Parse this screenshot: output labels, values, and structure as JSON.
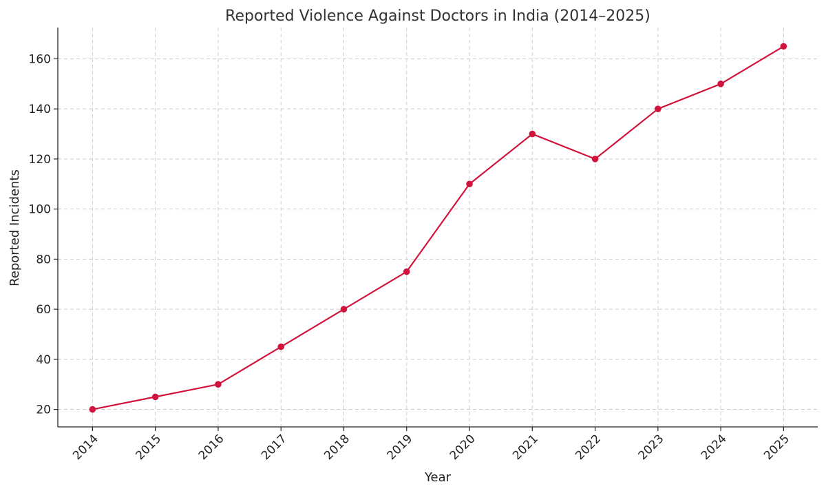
{
  "chart_data": {
    "type": "line",
    "title": "Reported Violence Against Doctors in India (2014–2025)",
    "xlabel": "Year",
    "ylabel": "Reported Incidents",
    "x": [
      "2014",
      "2015",
      "2016",
      "2017",
      "2018",
      "2019",
      "2020",
      "2021",
      "2022",
      "2023",
      "2024",
      "2025"
    ],
    "series": [
      {
        "values": [
          20,
          25,
          30,
          45,
          60,
          75,
          110,
          130,
          120,
          140,
          150,
          165
        ],
        "color": "#d0143c",
        "marker": "circle"
      }
    ],
    "ylim": [
      13,
      172.5
    ],
    "yticks": [
      20,
      40,
      60,
      80,
      100,
      120,
      140,
      160
    ],
    "grid": true,
    "legend": "none"
  }
}
